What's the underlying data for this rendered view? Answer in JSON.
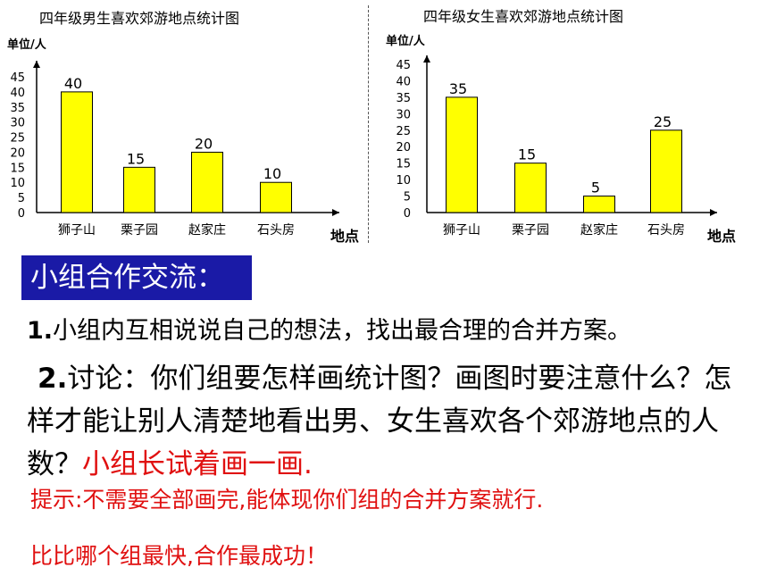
{
  "chart_data": [
    {
      "type": "bar",
      "title": "四年级男生喜欢郊游地点统计图",
      "ylabel": "单位/人",
      "xlabel": "地点",
      "categories": [
        "狮子山",
        "栗子园",
        "赵家庄",
        "石头房"
      ],
      "values": [
        40,
        15,
        20,
        10
      ],
      "yticks": [
        0,
        5,
        10,
        15,
        20,
        25,
        30,
        35,
        40,
        45
      ],
      "ylim": [
        0,
        45
      ],
      "bar_color": "#ffff00"
    },
    {
      "type": "bar",
      "title": "四年级女生喜欢郊游地点统计图",
      "ylabel": "单位/人",
      "xlabel": "地点",
      "categories": [
        "狮子山",
        "栗子园",
        "赵家庄",
        "石头房"
      ],
      "values": [
        35,
        15,
        5,
        25
      ],
      "yticks": [
        0,
        5,
        10,
        15,
        20,
        25,
        30,
        35,
        40,
        45
      ],
      "ylim": [
        0,
        45
      ],
      "bar_color": "#ffff00"
    }
  ],
  "banner": "小组合作交流：",
  "item1": {
    "num": "1.",
    "text": "小组内互相说说自己的想法，找出最合理的合并方案。"
  },
  "item2": {
    "num": "2.",
    "text": "讨论：你们组要怎样画统计图？画图时要注意什么？怎样才能让别人清楚地看出男、女生喜欢各个郊游地点的人数？",
    "red": "小组长试着画一画."
  },
  "hint": "提示:不需要全部画完,能体现你们组的合并方案就行.",
  "cheer": "比比哪个组最快,合作最成功！",
  "colors": {
    "banner": "#1a1aa6",
    "accent_red": "#e01010",
    "bar": "#ffff00"
  }
}
